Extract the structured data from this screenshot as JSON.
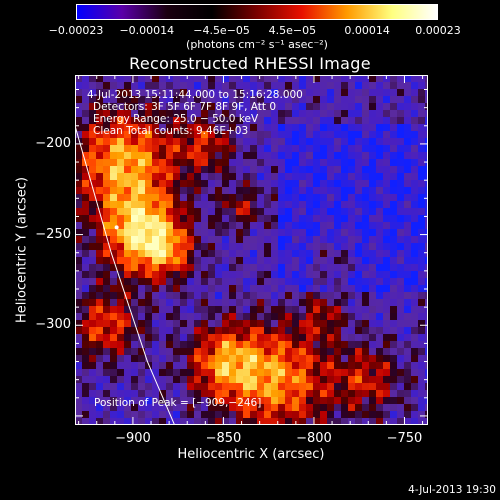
{
  "chart_data": {
    "type": "heatmap",
    "title": "Reconstructed RHESSI Image",
    "xlabel": "Heliocentric X (arcsec)",
    "ylabel": "Heliocentric Y (arcsec)",
    "xlim": [
      -932,
      -737
    ],
    "ylim": [
      -355,
      -162
    ],
    "x_ticks": [
      {
        "value": -900,
        "label": "−900"
      },
      {
        "value": -850,
        "label": "−850"
      },
      {
        "value": -800,
        "label": "−800"
      },
      {
        "value": -750,
        "label": "−750"
      }
    ],
    "y_ticks": [
      {
        "value": -200,
        "label": "−200"
      },
      {
        "value": -250,
        "label": "−250"
      },
      {
        "value": -300,
        "label": "−300"
      }
    ],
    "colorbar": {
      "range": [
        -0.00023,
        0.00023
      ],
      "tick_values": [
        -0.00023,
        -0.00014,
        -4.5e-05,
        4.5e-05,
        0.00014,
        0.00023
      ],
      "tick_labels": [
        "−0.00023",
        "−0.00014",
        "−4.5e−05",
        "4.5e−05",
        "0.00014",
        "0.00023"
      ],
      "unit_label": "(photons cm⁻² s⁻¹ asec⁻²)",
      "colors": [
        "#0000ff",
        "#5a00a8",
        "#1a0010",
        "#000000",
        "#7a0000",
        "#e81000",
        "#ff9a00",
        "#ffff80",
        "#ffffff"
      ]
    },
    "info_lines": [
      "4-Jul-2013 15:11:44.000 to 15:16:28.000",
      "Detectors: 3F 5F 6F 7F 8F 9F, Att 0",
      "Energy Range: 25.0 − 50.0 keV",
      "Clean    Total counts: 9.46E+03"
    ],
    "peak_label": "Position of Peak = [−909,−246]",
    "peak_position": [
      -909,
      -246
    ],
    "limb_curve": [
      [
        -932,
        -190
      ],
      [
        -912,
        -260
      ],
      [
        -892,
        -320
      ],
      [
        -877,
        -355
      ]
    ],
    "footer_time": "4-Jul-2013 19:30"
  }
}
